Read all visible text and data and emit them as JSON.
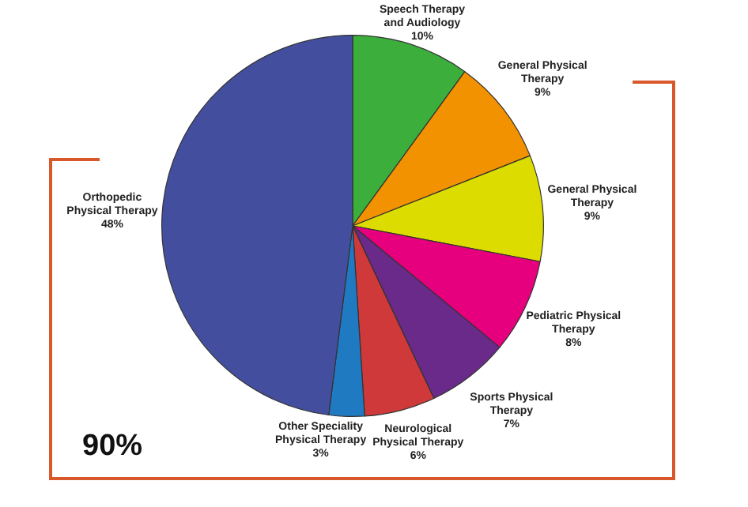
{
  "chart_data": {
    "type": "pie",
    "categories": [
      "Speech Therapy\nand Audiology",
      "General Physical\nTherapy",
      "General Physical\nTherapy",
      "Pediatric Physical\nTherapy",
      "Sports Physical\nTherapy",
      "Neurological\nPhysical Therapy",
      "Other Speciality\nPhysical Therapy",
      "Orthopedic\nPhysical Therapy"
    ],
    "values": [
      10,
      9,
      9,
      8,
      7,
      6,
      3,
      48
    ],
    "value_labels": [
      "10%",
      "9%",
      "9%",
      "8%",
      "7%",
      "6%",
      "3%",
      "48%"
    ],
    "colors": [
      "#3cae3c",
      "#f39200",
      "#dcdc00",
      "#e6007e",
      "#6a2a8a",
      "#d0393a",
      "#1f7ac2",
      "#434f9e"
    ],
    "annotations": [
      "90%"
    ],
    "legend": false
  }
}
